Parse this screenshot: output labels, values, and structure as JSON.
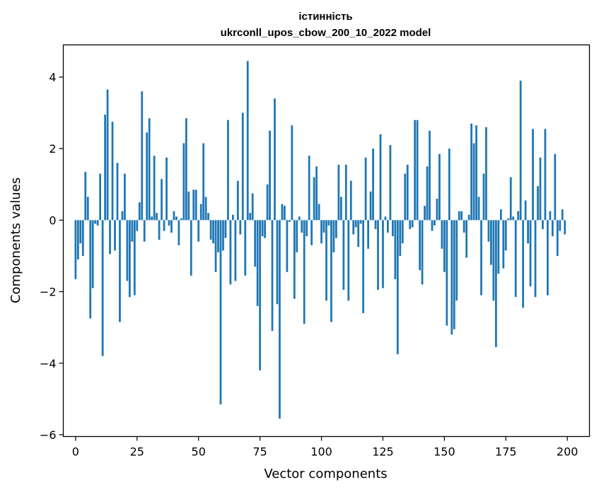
{
  "chart_data": {
    "type": "bar",
    "title_line1": "істинність",
    "title_line2": "ukrconll_upos_cbow_200_10_2022 model",
    "xlabel": "Vector components",
    "ylabel": "Components values",
    "xlim": [
      -5,
      209
    ],
    "ylim": [
      -6.05,
      4.9
    ],
    "xticks": [
      0,
      25,
      50,
      75,
      100,
      125,
      150,
      175,
      200
    ],
    "xtick_labels": [
      "0",
      "25",
      "50",
      "75",
      "100",
      "125",
      "150",
      "175",
      "200"
    ],
    "yticks": [
      -6,
      -4,
      -2,
      0,
      2,
      4
    ],
    "ytick_labels": [
      "−6",
      "−4",
      "−2",
      "0",
      "2",
      "4"
    ],
    "bar_color": "#1f77b4",
    "grid": false,
    "legend": "none",
    "values": [
      -1.65,
      -1.1,
      -0.65,
      -1.0,
      1.35,
      0.65,
      -2.75,
      -1.9,
      -0.1,
      -0.15,
      1.3,
      -3.8,
      2.95,
      3.65,
      -0.95,
      2.75,
      -0.85,
      1.6,
      -2.85,
      0.25,
      1.3,
      -1.7,
      -2.15,
      -0.6,
      -2.1,
      -0.3,
      0.5,
      3.6,
      -0.6,
      2.45,
      2.85,
      0.1,
      1.8,
      0.2,
      -0.55,
      1.15,
      -0.3,
      1.75,
      -0.15,
      -0.35,
      0.25,
      0.1,
      -0.7,
      0.05,
      2.15,
      2.85,
      0.8,
      -1.55,
      0.85,
      0.85,
      -0.6,
      0.45,
      2.15,
      0.65,
      0.2,
      -0.55,
      -0.65,
      -1.45,
      -0.9,
      -5.15,
      -0.85,
      -0.5,
      2.8,
      -1.8,
      0.15,
      -1.7,
      1.1,
      -0.4,
      3.0,
      -1.55,
      4.45,
      0.2,
      0.75,
      -1.3,
      -2.4,
      -4.2,
      -0.45,
      -0.5,
      1.0,
      2.5,
      -3.1,
      3.4,
      -2.35,
      -5.55,
      0.45,
      0.4,
      -1.45,
      -0.05,
      2.65,
      -2.2,
      -0.9,
      0.1,
      -0.35,
      -2.9,
      -0.45,
      1.8,
      -0.7,
      1.2,
      1.5,
      0.45,
      -0.65,
      -0.35,
      -2.25,
      -0.15,
      -2.85,
      -0.9,
      -0.5,
      1.55,
      0.65,
      -1.95,
      1.55,
      -2.25,
      1.1,
      -0.4,
      -0.2,
      -0.75,
      -0.1,
      -2.6,
      1.75,
      -0.8,
      0.8,
      2.0,
      -0.25,
      -1.95,
      2.4,
      -1.9,
      0.1,
      -0.35,
      2.1,
      -0.45,
      -1.65,
      -3.75,
      -1.0,
      -0.65,
      1.3,
      1.55,
      -0.25,
      -0.2,
      2.8,
      2.8,
      -1.4,
      -1.8,
      0.4,
      1.5,
      2.5,
      -0.3,
      -0.15,
      0.6,
      1.85,
      -0.8,
      -1.45,
      -2.95,
      2.0,
      -3.2,
      -3.05,
      -2.25,
      0.25,
      0.25,
      -0.35,
      -1.05,
      0.15,
      2.7,
      2.15,
      2.65,
      0.65,
      -2.1,
      1.3,
      2.6,
      -0.6,
      -1.25,
      -2.25,
      -3.55,
      -1.5,
      0.3,
      -1.35,
      -0.85,
      0.05,
      1.2,
      0.1,
      -2.15,
      0.25,
      3.9,
      -2.45,
      0.55,
      -0.65,
      -1.85,
      2.55,
      -2.15,
      0.95,
      1.75,
      -0.25,
      2.55,
      -2.1,
      0.25,
      -0.45,
      1.85,
      -1.0,
      -0.3,
      0.3,
      -0.4
    ]
  }
}
